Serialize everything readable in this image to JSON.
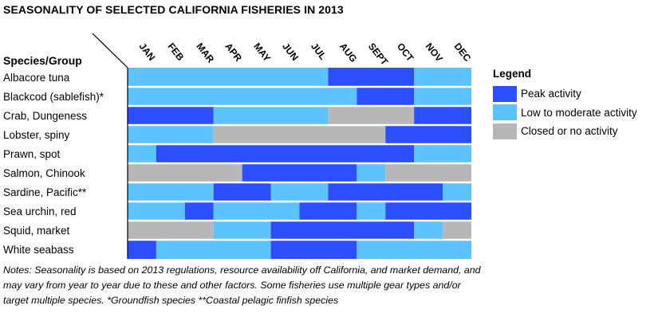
{
  "chart_data": {
    "type": "table",
    "title": "SEASONALITY OF SELECTED CALIFORNIA FISHERIES IN 2013",
    "row_header": "Species/Group",
    "months": [
      "JAN",
      "FEB",
      "MAR",
      "APR",
      "MAY",
      "JUN",
      "JUL",
      "AUG",
      "SEPT",
      "OCT",
      "NOV",
      "DEC"
    ],
    "status_levels": {
      "P": "Peak activity",
      "L": "Low to moderate activity",
      "C": "Closed or no activity"
    },
    "colors": {
      "P": "#2b4eff",
      "L": "#5cc3ff",
      "C": "#b7b7b7"
    },
    "rows": [
      {
        "label": "Albacore tuna",
        "segments": [
          {
            "from": 0,
            "to": 7,
            "status": "L"
          },
          {
            "from": 7,
            "to": 10,
            "status": "P"
          },
          {
            "from": 10,
            "to": 12,
            "status": "L"
          }
        ]
      },
      {
        "label": "Blackcod (sablefish)*",
        "segments": [
          {
            "from": 0,
            "to": 8,
            "status": "L"
          },
          {
            "from": 8,
            "to": 10,
            "status": "P"
          },
          {
            "from": 10,
            "to": 12,
            "status": "L"
          }
        ]
      },
      {
        "label": "Crab, Dungeness",
        "segments": [
          {
            "from": 0,
            "to": 3,
            "status": "P"
          },
          {
            "from": 3,
            "to": 7,
            "status": "L"
          },
          {
            "from": 7,
            "to": 10,
            "status": "C"
          },
          {
            "from": 10,
            "to": 12,
            "status": "P"
          }
        ]
      },
      {
        "label": "Lobster, spiny",
        "segments": [
          {
            "from": 0,
            "to": 3,
            "status": "L"
          },
          {
            "from": 3,
            "to": 9,
            "status": "C"
          },
          {
            "from": 9,
            "to": 12,
            "status": "P"
          }
        ]
      },
      {
        "label": "Prawn, spot",
        "segments": [
          {
            "from": 0,
            "to": 1,
            "status": "L"
          },
          {
            "from": 1,
            "to": 10,
            "status": "P"
          },
          {
            "from": 10,
            "to": 12,
            "status": "L"
          }
        ]
      },
      {
        "label": "Salmon, Chinook",
        "segments": [
          {
            "from": 0,
            "to": 4,
            "status": "C"
          },
          {
            "from": 4,
            "to": 8,
            "status": "P"
          },
          {
            "from": 8,
            "to": 9,
            "status": "L"
          },
          {
            "from": 9,
            "to": 12,
            "status": "C"
          }
        ]
      },
      {
        "label": "Sardine, Pacific**",
        "segments": [
          {
            "from": 0,
            "to": 3,
            "status": "L"
          },
          {
            "from": 3,
            "to": 5,
            "status": "P"
          },
          {
            "from": 5,
            "to": 7,
            "status": "L"
          },
          {
            "from": 7,
            "to": 11,
            "status": "P"
          },
          {
            "from": 11,
            "to": 12,
            "status": "L"
          }
        ]
      },
      {
        "label": "Sea urchin, red",
        "segments": [
          {
            "from": 0,
            "to": 2,
            "status": "L"
          },
          {
            "from": 2,
            "to": 3,
            "status": "P"
          },
          {
            "from": 3,
            "to": 6,
            "status": "L"
          },
          {
            "from": 6,
            "to": 8,
            "status": "P"
          },
          {
            "from": 8,
            "to": 9,
            "status": "L"
          },
          {
            "from": 9,
            "to": 12,
            "status": "P"
          }
        ]
      },
      {
        "label": "Squid, market",
        "segments": [
          {
            "from": 0,
            "to": 3,
            "status": "C"
          },
          {
            "from": 3,
            "to": 5,
            "status": "L"
          },
          {
            "from": 5,
            "to": 10,
            "status": "P"
          },
          {
            "from": 10,
            "to": 11,
            "status": "L"
          },
          {
            "from": 11,
            "to": 12,
            "status": "C"
          }
        ]
      },
      {
        "label": "White seabass",
        "segments": [
          {
            "from": 0,
            "to": 1,
            "status": "P"
          },
          {
            "from": 1,
            "to": 5,
            "status": "L"
          },
          {
            "from": 5,
            "to": 8,
            "status": "P"
          },
          {
            "from": 8,
            "to": 12,
            "status": "L"
          }
        ]
      }
    ],
    "legend": {
      "title": "Legend",
      "items": [
        {
          "label": "Peak activity",
          "status": "P"
        },
        {
          "label": "Low to moderate activity",
          "status": "L"
        },
        {
          "label": "Closed or no activity",
          "status": "C"
        }
      ]
    },
    "notes": [
      "Notes: Seasonality is based on 2013 regulations, resource availability off California, and market demand, and may vary from year to year due to these and other factors.",
      "Some fisheries use multiple gear types and/or target multiple species.",
      "*Groundfish species",
      "**Coastal pelagic finfish species"
    ]
  }
}
